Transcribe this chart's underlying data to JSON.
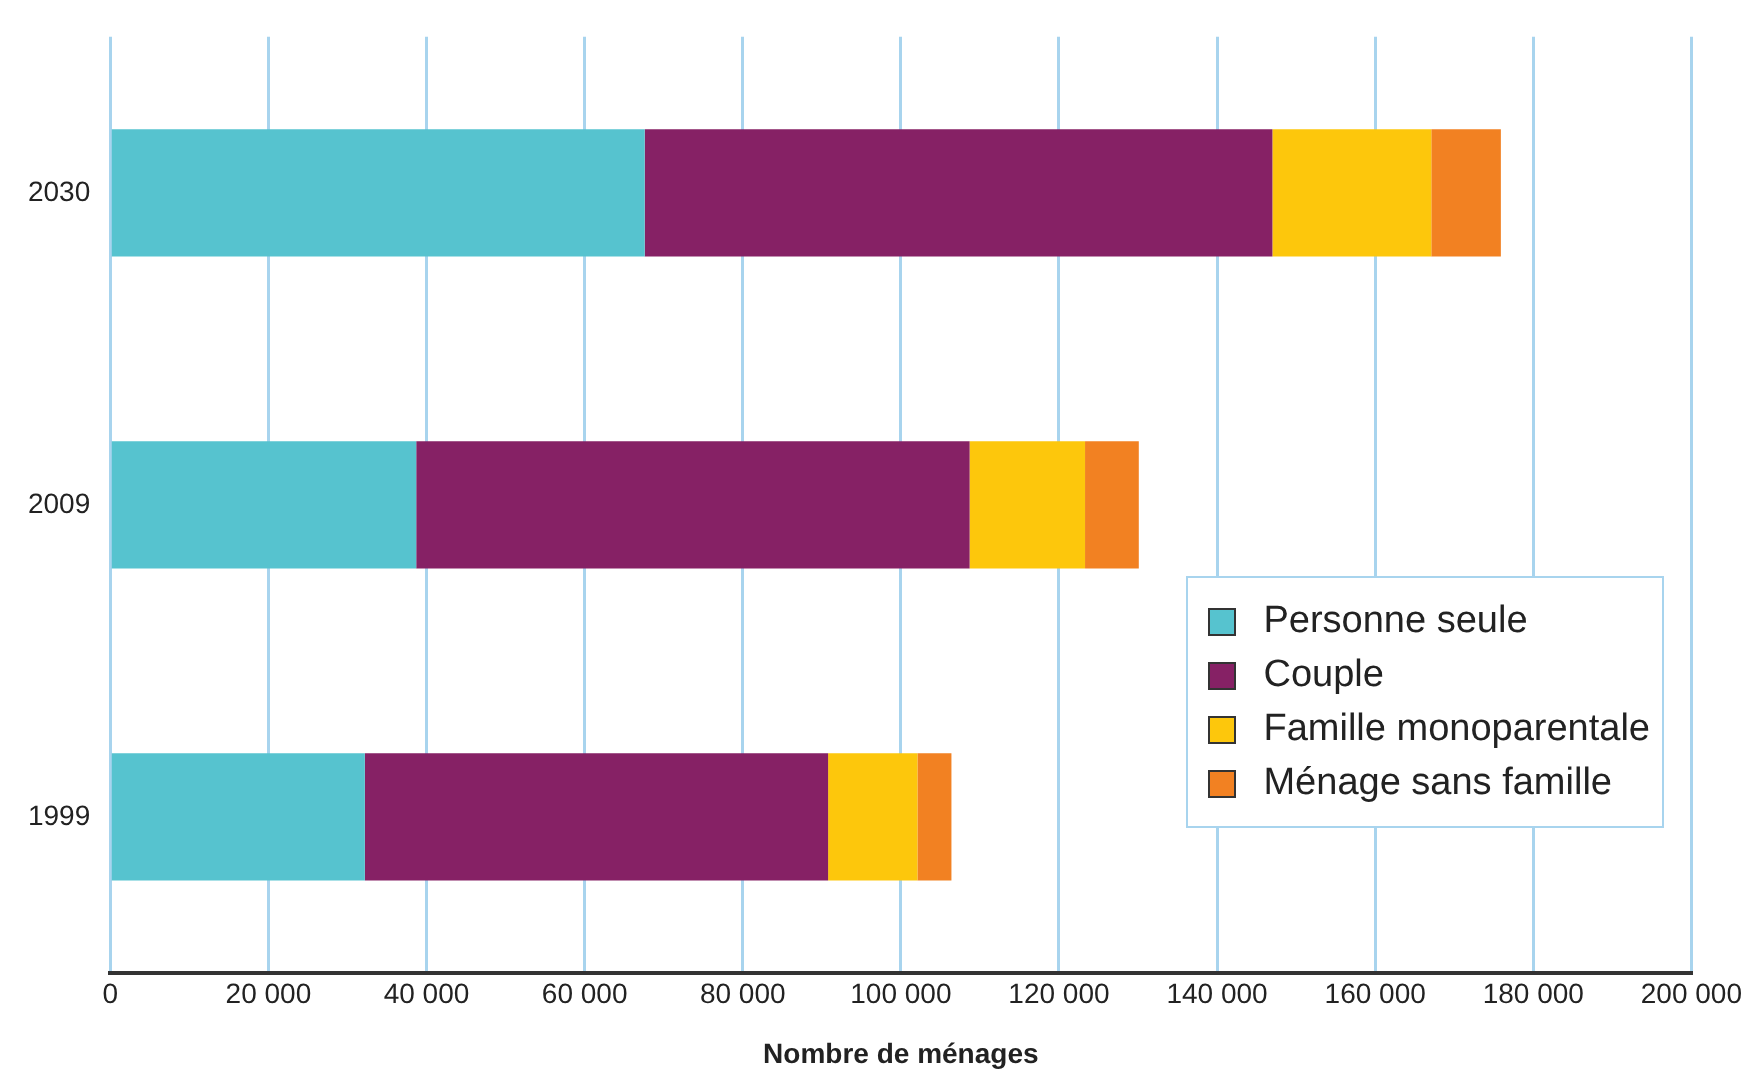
{
  "chart_data": {
    "type": "bar",
    "orientation": "horizontal",
    "stacked": true,
    "xlabel": "Nombre de ménages",
    "categories": [
      "2030",
      "2009",
      "1999"
    ],
    "series": [
      {
        "name": "Personne seule",
        "color": "#56c3cf",
        "values": [
          67600,
          38700,
          32200
        ]
      },
      {
        "name": "Couple",
        "color": "#862165",
        "values": [
          79400,
          70000,
          58600
        ]
      },
      {
        "name": "Famille monoparentale",
        "color": "#fdc70c",
        "values": [
          20100,
          14600,
          11300
        ]
      },
      {
        "name": "Ménage sans famille",
        "color": "#f28122",
        "values": [
          8800,
          6800,
          4300
        ]
      }
    ],
    "xlim": [
      0,
      200000
    ],
    "xticks": [
      0,
      {
        "value": 20000,
        "label": "20 000"
      },
      {
        "value": 40000,
        "label": "40 000"
      },
      {
        "value": 60000,
        "label": "60 000"
      },
      {
        "value": 80000,
        "label": "80 000"
      },
      {
        "value": 100000,
        "label": "100 000"
      },
      {
        "value": 120000,
        "label": "120 000"
      },
      {
        "value": 140000,
        "label": "140 000"
      },
      {
        "value": 160000,
        "label": "160 000"
      },
      {
        "value": 180000,
        "label": "180 000"
      },
      {
        "value": 200000,
        "label": "200 000"
      }
    ],
    "grid": "x",
    "legend": "bottom right"
  }
}
